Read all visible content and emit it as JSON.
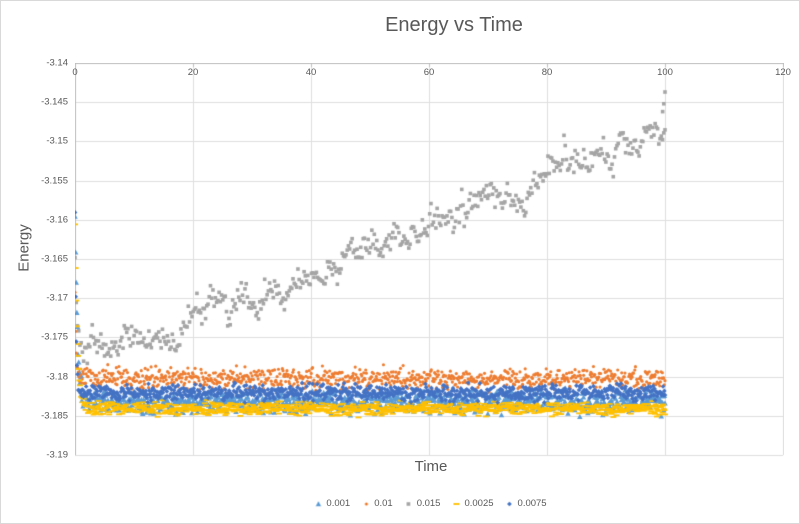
{
  "chart_data": {
    "type": "scatter",
    "title": "Energy vs Time",
    "xlabel": "Time",
    "ylabel": "Energy",
    "xlim": [
      0,
      120
    ],
    "ylim": [
      -3.19,
      -3.14
    ],
    "x_tick_values": [
      0,
      20,
      40,
      60,
      80,
      100,
      120
    ],
    "x_tick_labels": [
      "0",
      "20",
      "40",
      "60",
      "80",
      "100",
      "120"
    ],
    "y_tick_values": [
      -3.14,
      -3.145,
      -3.15,
      -3.155,
      -3.16,
      -3.165,
      -3.17,
      -3.175,
      -3.18,
      -3.185,
      -3.19
    ],
    "y_tick_labels": [
      "-3.14",
      "-3.145",
      "-3.15",
      "-3.155",
      "-3.16",
      "-3.165",
      "-3.17",
      "-3.175",
      "-3.18",
      "-3.185",
      "-3.19"
    ],
    "grid": true,
    "legend_position": "bottom",
    "text_color": "#595959",
    "gridline_color": "#dedede",
    "axis_color": "#bfbfbf",
    "series": [
      {
        "name": "0.001",
        "color": "#5B9BD5",
        "marker": "triangle",
        "marker_size": 4.6,
        "n": 950,
        "x_end": 100,
        "baseline": -3.1833,
        "noise": 0.0014,
        "transient": {
          "y0": -3.1595,
          "tau": 0.45
        },
        "seed": 101
      },
      {
        "name": "0.01",
        "color": "#ED7D31",
        "marker": "circle",
        "marker_size": 3.2,
        "n": 900,
        "x_end": 100,
        "baseline": -3.1802,
        "noise": 0.0013,
        "transient": {
          "y0": -3.169,
          "tau": 0.2
        },
        "seed": 202
      },
      {
        "name": "0.015",
        "color": "#A5A5A5",
        "marker": "square",
        "marker_size": 3.6,
        "n": 480,
        "x_end": 100,
        "noise": 0.0012,
        "ar_noise": 0.0009,
        "transient": {
          "y0": -3.166,
          "tau": 0.3
        },
        "seed": 303,
        "trend": [
          [
            0,
            -3.1755
          ],
          [
            5,
            -3.1763
          ],
          [
            10,
            -3.1766
          ],
          [
            15,
            -3.1746
          ],
          [
            20,
            -3.1731
          ],
          [
            25,
            -3.1713
          ],
          [
            30,
            -3.1701
          ],
          [
            35,
            -3.1686
          ],
          [
            40,
            -3.1673
          ],
          [
            45,
            -3.1656
          ],
          [
            50,
            -3.1645
          ],
          [
            55,
            -3.1631
          ],
          [
            60,
            -3.1607
          ],
          [
            63,
            -3.1591
          ],
          [
            67,
            -3.1584
          ],
          [
            70,
            -3.1576
          ],
          [
            72,
            -3.1566
          ],
          [
            75,
            -3.1554
          ],
          [
            78,
            -3.1549
          ],
          [
            80,
            -3.1543
          ],
          [
            83,
            -3.1529
          ],
          [
            86,
            -3.1522
          ],
          [
            90,
            -3.1509
          ],
          [
            93,
            -3.1501
          ],
          [
            96,
            -3.1496
          ],
          [
            100,
            -3.1469
          ]
        ],
        "outliers": [
          [
            99.6,
            -3.1462
          ],
          [
            99.8,
            -3.1452
          ],
          [
            100,
            -3.1437
          ]
        ]
      },
      {
        "name": "0.0025",
        "color": "#FFC000",
        "marker": "dash",
        "marker_size": 4.6,
        "n": 950,
        "x_end": 100,
        "baseline": -3.1841,
        "noise": 0.0008,
        "transient": {
          "y0": -3.1605,
          "tau": 0.4
        },
        "seed": 404
      },
      {
        "name": "0.0075",
        "color": "#4472C4",
        "marker": "diamond",
        "marker_size": 3.8,
        "n": 900,
        "x_end": 100,
        "baseline": -3.1821,
        "noise": 0.001,
        "transient": {
          "y0": -3.159,
          "tau": 0.18
        },
        "seed": 505
      }
    ]
  }
}
